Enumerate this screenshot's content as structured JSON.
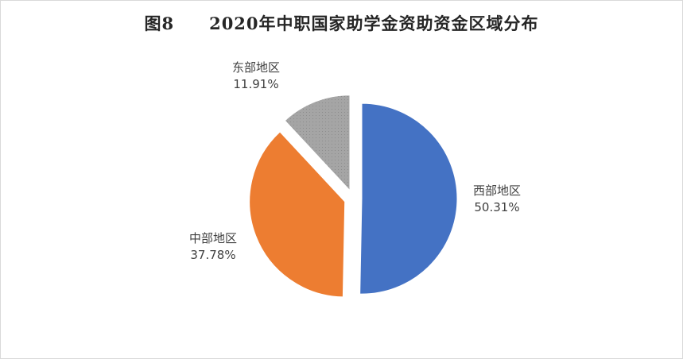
{
  "chart_data": {
    "type": "pie",
    "title": "图8　　2020年中职国家助学金资助资金区域分布",
    "categories": [
      "西部地区",
      "中部地区",
      "东部地区"
    ],
    "values": [
      50.31,
      37.78,
      11.91
    ],
    "value_labels": [
      "50.31%",
      "37.78%",
      "11.91%"
    ],
    "colors": [
      "#4472c4",
      "#ed7d31",
      "#a5a5a5"
    ],
    "exploded": true,
    "legend": "none",
    "start_angle": "12 o'clock, clockwise"
  }
}
